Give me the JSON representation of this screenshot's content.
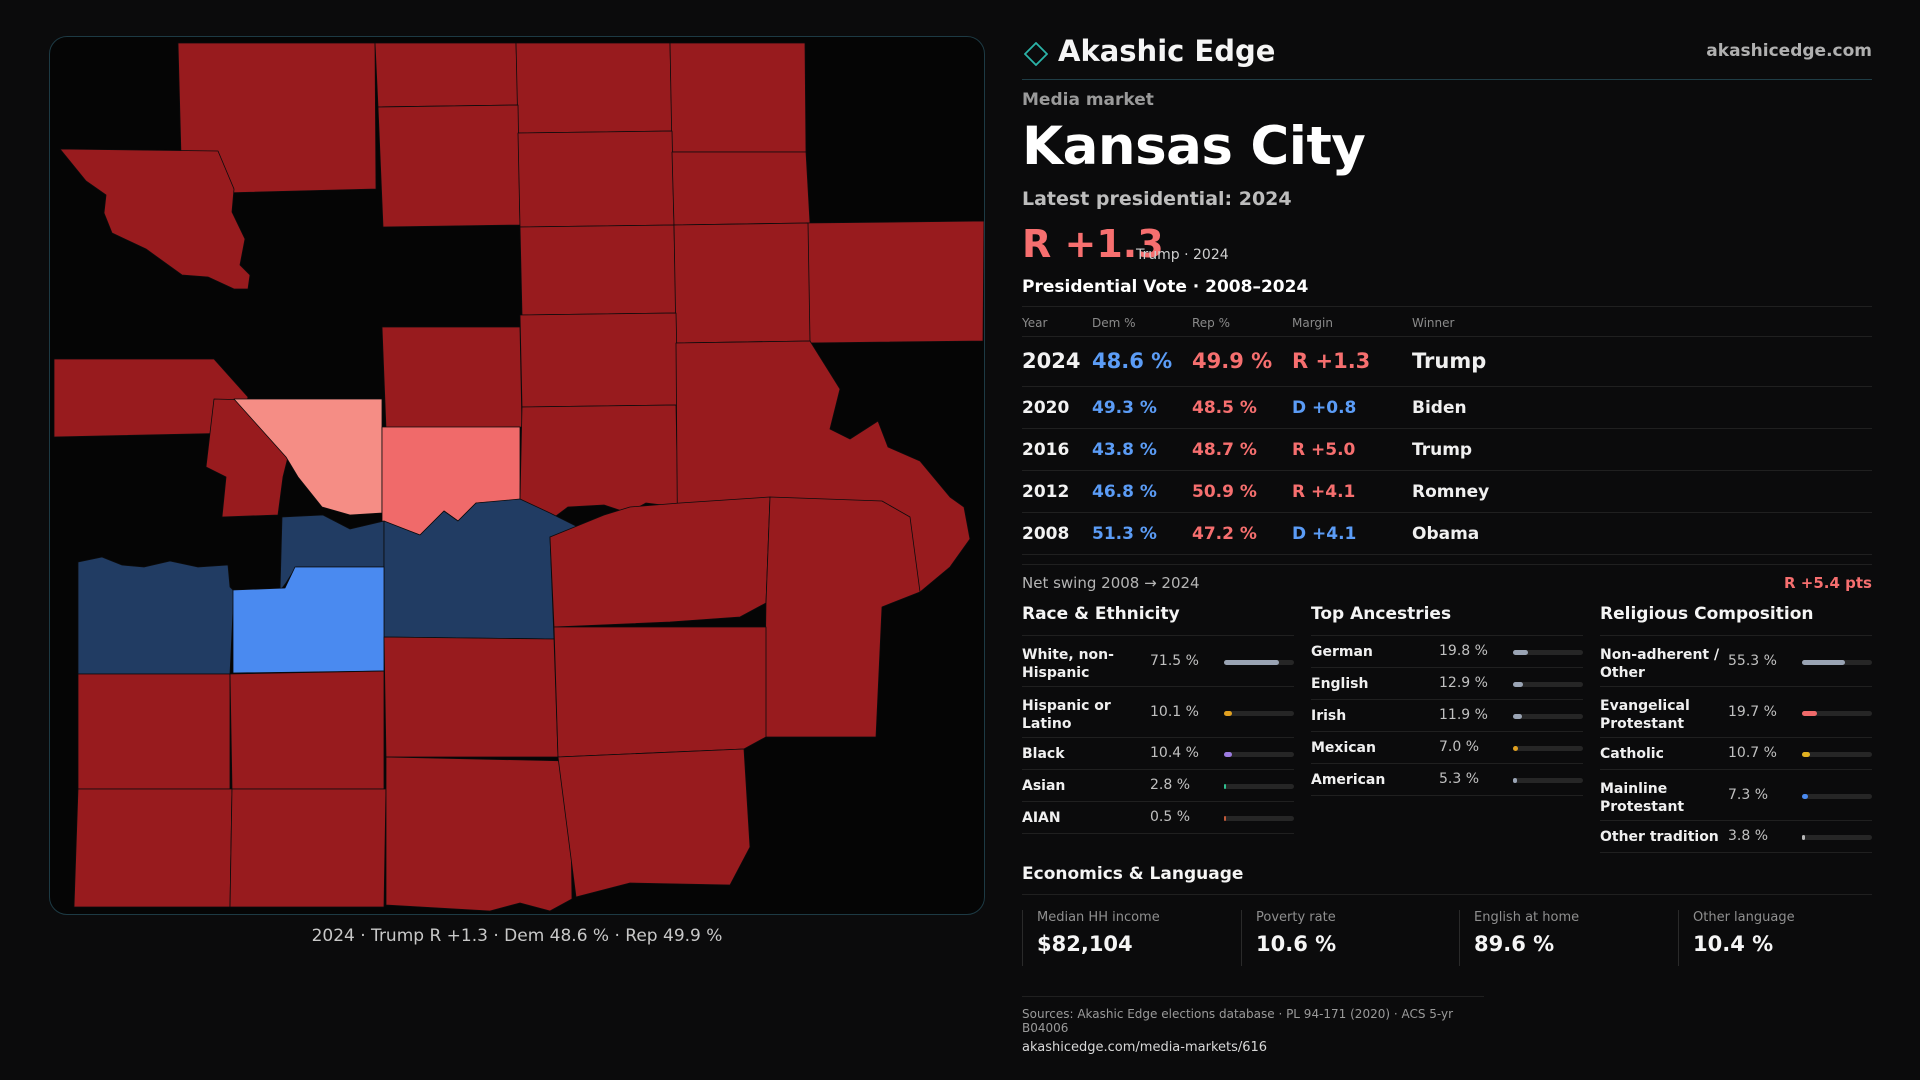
{
  "brand": {
    "name": "Akashic Edge",
    "url": "akashicedge.com"
  },
  "market": {
    "eyebrow": "Media market",
    "name": "Kansas City",
    "latest": "Latest presidential: 2024",
    "margin": "R +1.3",
    "margin_meta": "Trump · 2024"
  },
  "map": {
    "caption": "2024 · Trump R +1.3 · Dem 48.6 % · Rep 49.9 %",
    "colors": {
      "safe_rep": "#981b1e",
      "lean_rep_light": "#f58d85",
      "lean_rep": "#f06a6a",
      "lean_dem": "#213c63",
      "safe_dem": "#4a8af0"
    }
  },
  "vote_table": {
    "title": "Presidential Vote · 2008–2024",
    "headers": {
      "year": "Year",
      "dem": "Dem %",
      "rep": "Rep %",
      "margin": "Margin",
      "winner": "Winner"
    },
    "rows": [
      {
        "year": "2024",
        "dem": "48.6 %",
        "rep": "49.9 %",
        "margin": "R +1.3",
        "party": "R",
        "winner": "Trump"
      },
      {
        "year": "2020",
        "dem": "49.3 %",
        "rep": "48.5 %",
        "margin": "D +0.8",
        "party": "D",
        "winner": "Biden"
      },
      {
        "year": "2016",
        "dem": "43.8 %",
        "rep": "48.7 %",
        "margin": "R +5.0",
        "party": "R",
        "winner": "Trump"
      },
      {
        "year": "2012",
        "dem": "46.8 %",
        "rep": "50.9 %",
        "margin": "R +4.1",
        "party": "R",
        "winner": "Romney"
      },
      {
        "year": "2008",
        "dem": "51.3 %",
        "rep": "47.2 %",
        "margin": "D +4.1",
        "party": "D",
        "winner": "Obama"
      }
    ]
  },
  "swing": {
    "label": "Net swing 2008 → 2024",
    "value": "R +5.4 pts"
  },
  "race": {
    "title": "Race & Ethnicity",
    "rows": [
      {
        "label": "White, non-Hispanic",
        "value": "71.5 %",
        "pct": 71.5,
        "color": "#9aa4b4"
      },
      {
        "label": "Hispanic or Latino",
        "value": "10.1 %",
        "pct": 10.1,
        "color": "#e0a020"
      },
      {
        "label": "Black",
        "value": "10.4 %",
        "pct": 10.4,
        "color": "#9c7be0"
      },
      {
        "label": "Asian",
        "value": "2.8 %",
        "pct": 2.8,
        "color": "#2fbf8f"
      },
      {
        "label": "AIAN",
        "value": "0.5 %",
        "pct": 0.5,
        "color": "#c05a3a"
      }
    ]
  },
  "ancestry": {
    "title": "Top Ancestries",
    "rows": [
      {
        "label": "German",
        "value": "19.8 %",
        "pct": 19.8,
        "color": "#9aa4b4"
      },
      {
        "label": "English",
        "value": "12.9 %",
        "pct": 12.9,
        "color": "#9aa4b4"
      },
      {
        "label": "Irish",
        "value": "11.9 %",
        "pct": 11.9,
        "color": "#9aa4b4"
      },
      {
        "label": "Mexican",
        "value": "7.0 %",
        "pct": 7.0,
        "color": "#e0a020"
      },
      {
        "label": "American",
        "value": "5.3 %",
        "pct": 5.3,
        "color": "#9aa4b4"
      }
    ]
  },
  "religion": {
    "title": "Religious Composition",
    "rows": [
      {
        "label": "Non-adherent / Other",
        "value": "55.3 %",
        "pct": 55.3,
        "color": "#9aa4b4"
      },
      {
        "label": "Evangelical Protestant",
        "value": "19.7 %",
        "pct": 19.7,
        "color": "#f06a6a"
      },
      {
        "label": "Catholic",
        "value": "10.7 %",
        "pct": 10.7,
        "color": "#e0b020"
      },
      {
        "label": "Mainline Protestant",
        "value": "7.3 %",
        "pct": 7.3,
        "color": "#4a8af0"
      },
      {
        "label": "Other tradition",
        "value": "3.8 %",
        "pct": 3.8,
        "color": "#b8b8b8"
      }
    ]
  },
  "economics": {
    "title": "Economics & Language",
    "items": [
      {
        "label": "Median HH income",
        "value": "$82,104"
      },
      {
        "label": "Poverty rate",
        "value": "10.6 %"
      },
      {
        "label": "English at home",
        "value": "89.6 %"
      },
      {
        "label": "Other language",
        "value": "10.4 %"
      }
    ]
  },
  "sources": {
    "line": "Sources: Akashic Edge elections database · PL 94-171 (2020) · ACS 5-yr B04006",
    "url": "akashicedge.com/media-markets/616"
  }
}
